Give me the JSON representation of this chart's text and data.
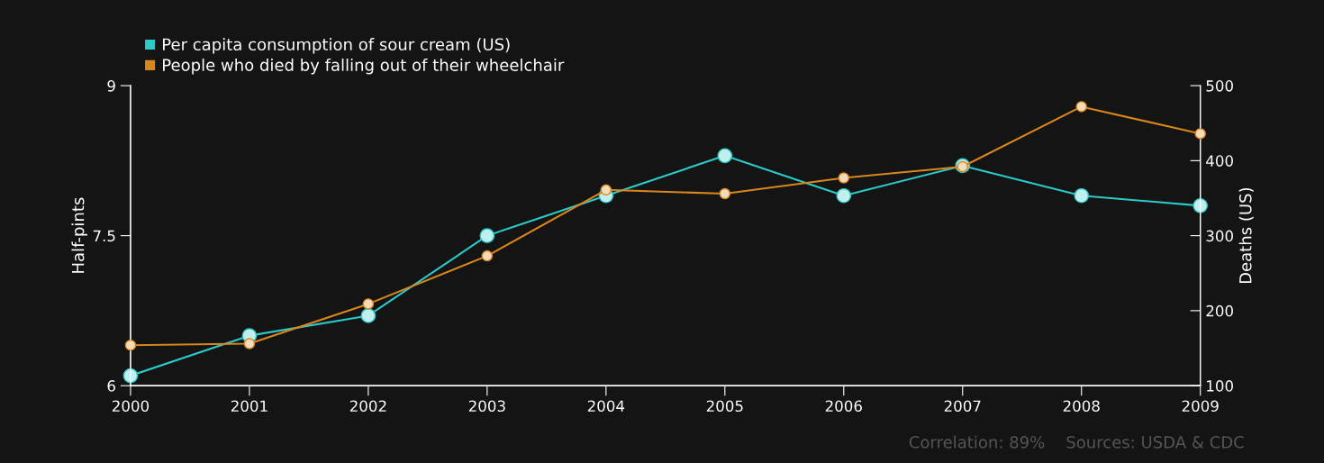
{
  "chart_data": {
    "type": "line",
    "x": [
      2000,
      2001,
      2002,
      2003,
      2004,
      2005,
      2006,
      2007,
      2008,
      2009
    ],
    "series": [
      {
        "name": "Per capita consumption of sour cream (US)",
        "color": "#2cc9c9",
        "values": [
          6.1,
          6.5,
          6.7,
          7.5,
          7.9,
          8.3,
          7.9,
          8.2,
          7.9,
          7.8
        ]
      },
      {
        "name": "People who died by falling out of their wheelchair",
        "color": "#d9861c",
        "axis": "y2",
        "values": [
          154,
          156,
          209,
          273,
          361,
          356,
          377,
          392,
          472,
          436
        ]
      }
    ],
    "xlim": [
      2000,
      2009
    ],
    "xticks": [
      2000,
      2001,
      2002,
      2003,
      2004,
      2005,
      2006,
      2007,
      2008,
      2009
    ],
    "ylim": [
      6,
      9
    ],
    "yticks": [
      6,
      7.5,
      9
    ],
    "y2lim": [
      100,
      500
    ],
    "y2ticks": [
      100,
      200,
      300,
      400,
      500
    ],
    "ylabel": "Half-pints",
    "y2label": "Deaths (US)",
    "marker": "circle",
    "line_style": "solid",
    "grid": false,
    "legend": "top left",
    "annotations": [
      "Correlation: 89%",
      "Sources: USDA & CDC"
    ]
  }
}
